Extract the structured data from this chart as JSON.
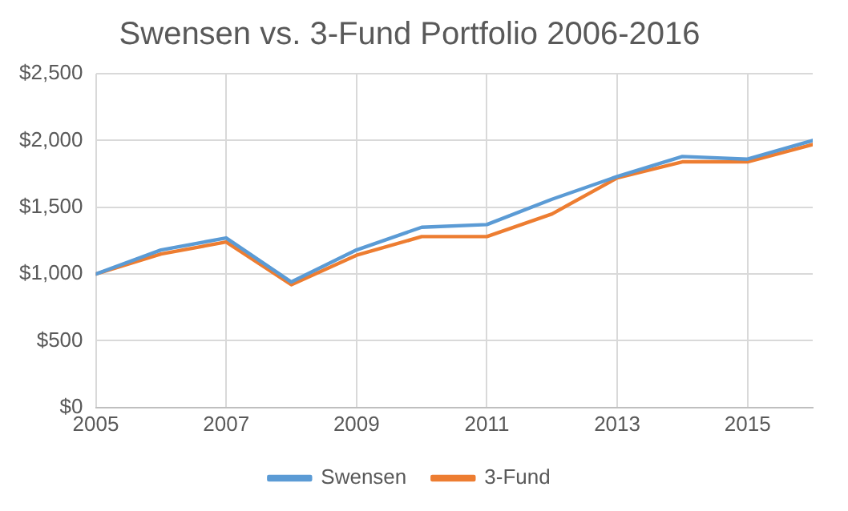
{
  "chart_data": {
    "type": "line",
    "title": "Swensen vs. 3-Fund Portfolio 2006-2016",
    "x": [
      2005,
      2006,
      2007,
      2008,
      2009,
      2010,
      2011,
      2012,
      2013,
      2014,
      2015,
      2016
    ],
    "series": [
      {
        "name": "Swensen",
        "color": "#5b9bd5",
        "values": [
          1000,
          1180,
          1270,
          940,
          1180,
          1350,
          1370,
          1560,
          1730,
          1880,
          1860,
          2000
        ]
      },
      {
        "name": "3-Fund",
        "color": "#ed7d31",
        "values": [
          1000,
          1150,
          1240,
          920,
          1140,
          1280,
          1280,
          1450,
          1720,
          1840,
          1840,
          1970
        ]
      }
    ],
    "xlim": [
      2005,
      2016
    ],
    "xticks": [
      2005,
      2007,
      2009,
      2011,
      2013,
      2015
    ],
    "ylim": [
      0,
      2500
    ],
    "yticks": [
      {
        "value": 0,
        "label": "$0"
      },
      {
        "value": 500,
        "label": "$500"
      },
      {
        "value": 1000,
        "label": "$1,000"
      },
      {
        "value": 1500,
        "label": "$1,500"
      },
      {
        "value": 2000,
        "label": "$2,000"
      },
      {
        "value": 2500,
        "label": "$2,500"
      }
    ],
    "grid": true,
    "legend": "bottom",
    "marker": "none",
    "line_style": "solid"
  }
}
